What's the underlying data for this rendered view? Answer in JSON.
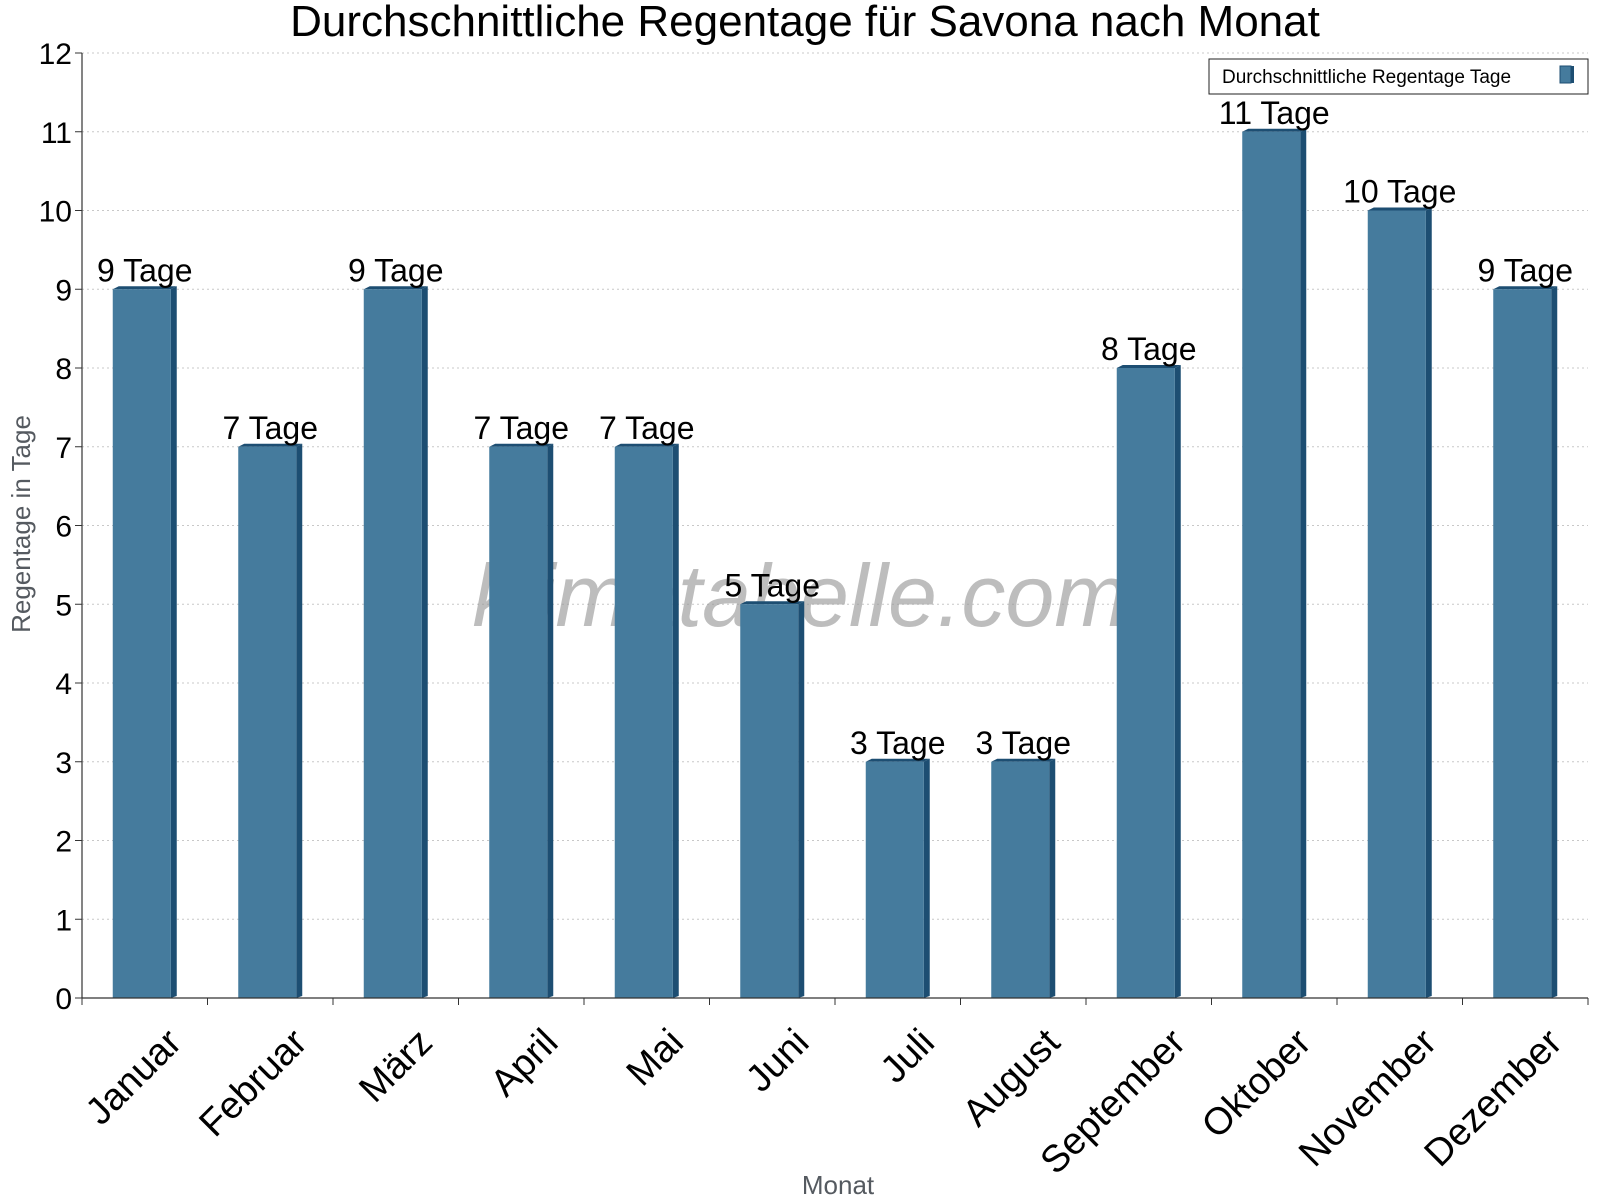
{
  "chart_data": {
    "type": "bar",
    "title": "Durchschnittliche Regentage für Savona nach Monat",
    "xlabel": "Monat",
    "ylabel": "Regentage in Tage",
    "ylim": [
      0,
      12
    ],
    "yticks": [
      "0",
      "1",
      "2",
      "3",
      "4",
      "5",
      "6",
      "7",
      "8",
      "9",
      "10",
      "11",
      "12"
    ],
    "categories": [
      "Januar",
      "Februar",
      "März",
      "April",
      "Mai",
      "Juni",
      "Juli",
      "August",
      "September",
      "Oktober",
      "November",
      "Dezember"
    ],
    "series": [
      {
        "name": "Durchschnittliche Regentage Tage",
        "values": [
          9,
          7,
          9,
          7,
          7,
          5,
          3,
          3,
          8,
          11,
          10,
          9
        ],
        "data_labels": [
          "9 Tage",
          "7 Tage",
          "9 Tage",
          "7 Tage",
          "7 Tage",
          "5 Tage",
          "3 Tage",
          "3 Tage",
          "8 Tage",
          "11 Tage",
          "10 Tage",
          "9 Tage"
        ],
        "color": "#457b9d",
        "side_color": "#1d4e72"
      }
    ],
    "grid": true,
    "legend_position": "top-right",
    "watermark": "klimatabelle.com"
  }
}
